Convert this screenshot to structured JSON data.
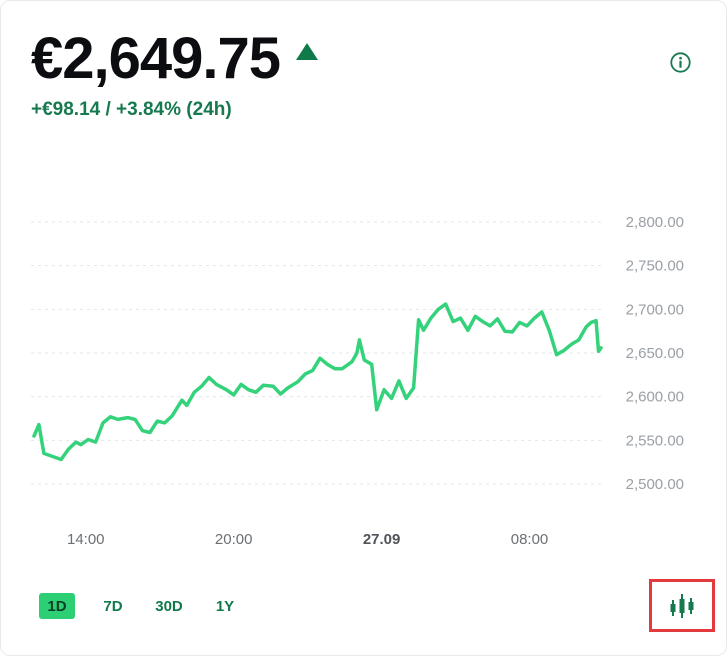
{
  "header": {
    "price": "€2,649.75",
    "change": "+€98.14 / +3.84% (24h)",
    "trend_icon": "up-triangle-icon",
    "info_icon": "info-icon"
  },
  "colors": {
    "line": "#34d27b",
    "accent_green": "#177a4f",
    "active_tab": "#2ccf73",
    "highlight": "#e33a3f"
  },
  "chart_data": {
    "type": "line",
    "y_ticks": [
      "2,800.00",
      "2,750.00",
      "2,700.00",
      "2,650.00",
      "2,600.00",
      "2,550.00",
      "2,500.00"
    ],
    "y_tick_values": [
      2800,
      2750,
      2700,
      2650,
      2600,
      2550,
      2500
    ],
    "ylim": [
      2500,
      2800
    ],
    "x_ticks": [
      {
        "label": "14:00",
        "bold": false,
        "t": 14
      },
      {
        "label": "20:00",
        "bold": false,
        "t": 20
      },
      {
        "label": "27.09",
        "bold": true,
        "t": 26
      },
      {
        "label": "08:00",
        "bold": false,
        "t": 32
      }
    ],
    "x_range": [
      11.9,
      34.9
    ],
    "grid": true,
    "series": [
      {
        "values": [
          [
            11.9,
            2555
          ],
          [
            12.1,
            2568
          ],
          [
            12.3,
            2535
          ],
          [
            12.7,
            2531
          ],
          [
            13.0,
            2528
          ],
          [
            13.3,
            2540
          ],
          [
            13.6,
            2548
          ],
          [
            13.8,
            2545
          ],
          [
            14.1,
            2551
          ],
          [
            14.4,
            2548
          ],
          [
            14.7,
            2570
          ],
          [
            15.0,
            2577
          ],
          [
            15.3,
            2574
          ],
          [
            15.7,
            2576
          ],
          [
            16.0,
            2574
          ],
          [
            16.3,
            2561
          ],
          [
            16.6,
            2559
          ],
          [
            16.9,
            2572
          ],
          [
            17.2,
            2570
          ],
          [
            17.5,
            2578
          ],
          [
            17.9,
            2596
          ],
          [
            18.1,
            2590
          ],
          [
            18.4,
            2605
          ],
          [
            18.7,
            2612
          ],
          [
            19.0,
            2622
          ],
          [
            19.3,
            2614
          ],
          [
            19.7,
            2608
          ],
          [
            20.0,
            2602
          ],
          [
            20.3,
            2614
          ],
          [
            20.6,
            2608
          ],
          [
            20.9,
            2605
          ],
          [
            21.2,
            2613
          ],
          [
            21.6,
            2612
          ],
          [
            21.9,
            2603
          ],
          [
            22.2,
            2610
          ],
          [
            22.6,
            2617
          ],
          [
            22.9,
            2626
          ],
          [
            23.2,
            2630
          ],
          [
            23.5,
            2644
          ],
          [
            23.8,
            2637
          ],
          [
            24.1,
            2632
          ],
          [
            24.4,
            2632
          ],
          [
            24.8,
            2640
          ],
          [
            25.0,
            2650
          ],
          [
            25.1,
            2665
          ],
          [
            25.3,
            2642
          ],
          [
            25.6,
            2637
          ],
          [
            25.8,
            2585
          ],
          [
            26.1,
            2608
          ],
          [
            26.4,
            2598
          ],
          [
            26.7,
            2618
          ],
          [
            27.0,
            2598
          ],
          [
            27.3,
            2610
          ],
          [
            27.5,
            2688
          ],
          [
            27.7,
            2676
          ],
          [
            28.0,
            2690
          ],
          [
            28.3,
            2700
          ],
          [
            28.6,
            2706
          ],
          [
            28.9,
            2686
          ],
          [
            29.2,
            2690
          ],
          [
            29.5,
            2676
          ],
          [
            29.8,
            2692
          ],
          [
            30.1,
            2686
          ],
          [
            30.4,
            2681
          ],
          [
            30.7,
            2689
          ],
          [
            31.0,
            2675
          ],
          [
            31.3,
            2674
          ],
          [
            31.6,
            2685
          ],
          [
            31.9,
            2681
          ],
          [
            32.2,
            2690
          ],
          [
            32.5,
            2697
          ],
          [
            32.8,
            2676
          ],
          [
            33.1,
            2648
          ],
          [
            33.4,
            2653
          ],
          [
            33.7,
            2660
          ],
          [
            34.0,
            2665
          ],
          [
            34.3,
            2680
          ],
          [
            34.5,
            2685
          ],
          [
            34.7,
            2687
          ],
          [
            34.8,
            2652
          ],
          [
            34.9,
            2656
          ]
        ]
      }
    ]
  },
  "range_tabs": [
    {
      "label": "1D",
      "active": true
    },
    {
      "label": "7D",
      "active": false
    },
    {
      "label": "30D",
      "active": false
    },
    {
      "label": "1Y",
      "active": false
    }
  ],
  "chart_toggle_icon": "candlestick-icon"
}
